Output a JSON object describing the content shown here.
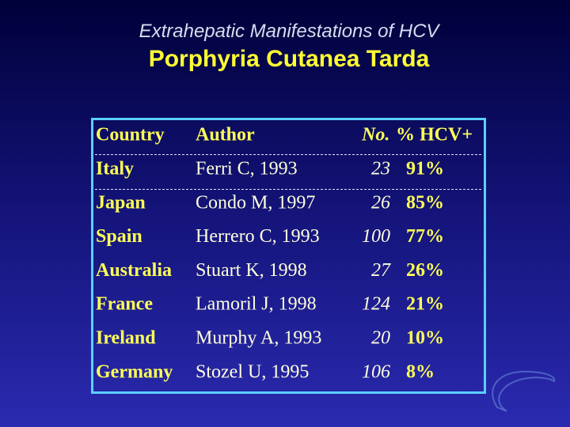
{
  "header": {
    "subtitle": "Extrahepatic Manifestations  of HCV",
    "title": "Porphyria Cutanea Tarda"
  },
  "table": {
    "columns": [
      "Country",
      "Author",
      "No.",
      "% HCV+"
    ],
    "rows": [
      [
        "Italy",
        "Ferri C, 1993",
        "23",
        "91%"
      ],
      [
        "Japan",
        "Condo M, 1997",
        "26",
        "85%"
      ],
      [
        "Spain",
        "Herrero C, 1993",
        "100",
        "77%"
      ],
      [
        "Australia",
        "Stuart K, 1998",
        "27",
        "26%"
      ],
      [
        "France",
        "Lamoril J, 1998",
        "124",
        "21%"
      ],
      [
        "Ireland",
        "Murphy A, 1993",
        "20",
        "10%"
      ],
      [
        "Germany",
        "Stozel U, 1995",
        "106",
        "8%"
      ]
    ]
  }
}
